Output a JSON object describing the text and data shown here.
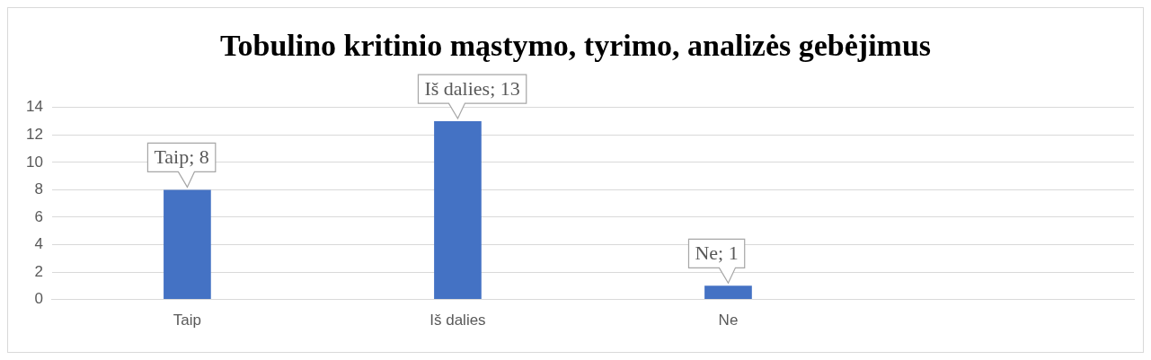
{
  "chart_data": {
    "type": "bar",
    "title": "Tobulino kritinio mąstymo, tyrimo, analizės gebėjimus",
    "categories": [
      "Taip",
      "Iš dalies",
      "Ne",
      null
    ],
    "values": [
      8,
      13,
      1,
      null
    ],
    "value_labels": [
      "Taip; 8",
      "Iš dalies; 13",
      "Ne; 1",
      null
    ],
    "color": "#4472c4",
    "ylim": [
      0,
      14
    ],
    "yticks": [
      0,
      2,
      4,
      6,
      8,
      10,
      12,
      14
    ],
    "grid": "y",
    "legend": false
  }
}
